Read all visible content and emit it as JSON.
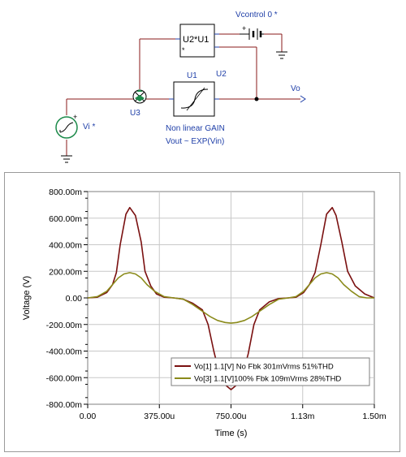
{
  "schematic": {
    "vcontrol_label": "Vcontrol 0 *",
    "multiplier_label": "U2*U1",
    "multiplier_star": "*",
    "gain_u1": "U1",
    "gain_u2": "U2",
    "summer_label": "U3",
    "output_label": "Vo",
    "source_label": "Vi *",
    "plus_sign": "+",
    "gain_note_line1": "Non linear GAIN",
    "gain_note_line2": "Vout ~ EXP(Vin)"
  },
  "chart_data": {
    "type": "line",
    "xlabel": "Time (s)",
    "ylabel": "Voltage (V)",
    "xlim": [
      0,
      0.0015
    ],
    "ylim": [
      -0.8,
      0.8
    ],
    "x_ticks": [
      "0.00",
      "375.00u",
      "750.00u",
      "1.13m",
      "1.50m"
    ],
    "y_ticks": [
      "800.00m",
      "600.00m",
      "400.00m",
      "200.00m",
      "0.00",
      "-200.00m",
      "-400.00m",
      "-600.00m",
      "-800.00m"
    ],
    "grid": true,
    "legend_position": "bottom-right",
    "series": [
      {
        "name": "Vo[1]  1.1[V] No Fbk 301mVrms 51%THD",
        "color": "#7a1010",
        "x": [
          0,
          5e-05,
          0.0001,
          0.00013,
          0.00015,
          0.00017,
          0.0002,
          0.00022,
          0.00025,
          0.00028,
          0.0003,
          0.00033,
          0.00036,
          0.0004,
          0.00045,
          0.0005,
          0.00055,
          0.0006,
          0.00063,
          0.00066,
          0.0007,
          0.00075,
          0.0008,
          0.00084,
          0.00087,
          0.0009,
          0.00095,
          0.001,
          0.00105,
          0.00109,
          0.00113,
          0.00116,
          0.00119,
          0.00122,
          0.00125,
          0.00128,
          0.0013,
          0.00133,
          0.00136,
          0.0014,
          0.00145,
          0.0015
        ],
        "y": [
          0.0,
          0.005,
          0.04,
          0.1,
          0.19,
          0.4,
          0.63,
          0.68,
          0.62,
          0.42,
          0.2,
          0.09,
          0.03,
          0.005,
          0.0,
          -0.01,
          -0.04,
          -0.09,
          -0.2,
          -0.4,
          -0.63,
          -0.69,
          -0.63,
          -0.42,
          -0.2,
          -0.09,
          -0.03,
          -0.005,
          0.0,
          0.005,
          0.04,
          0.1,
          0.19,
          0.4,
          0.63,
          0.68,
          0.62,
          0.42,
          0.2,
          0.09,
          0.03,
          0.0
        ]
      },
      {
        "name": "Vo[3]  1.1[V]100% Fbk 109mVrms 28%THD",
        "color": "#8a8a1a",
        "x": [
          0,
          5e-05,
          0.0001,
          0.00013,
          0.00016,
          0.00019,
          0.00022,
          0.00025,
          0.00028,
          0.00031,
          0.00035,
          0.0004,
          0.00045,
          0.0005,
          0.00055,
          0.0006,
          0.00064,
          0.00068,
          0.00072,
          0.00075,
          0.00078,
          0.00082,
          0.00086,
          0.0009,
          0.00095,
          0.001,
          0.00105,
          0.00109,
          0.00113,
          0.00116,
          0.00119,
          0.00122,
          0.00125,
          0.00128,
          0.00131,
          0.00134,
          0.00138,
          0.00142,
          0.00146,
          0.0015
        ],
        "y": [
          0.0,
          0.01,
          0.05,
          0.1,
          0.15,
          0.18,
          0.19,
          0.18,
          0.15,
          0.1,
          0.05,
          0.01,
          0.0,
          -0.01,
          -0.05,
          -0.1,
          -0.14,
          -0.17,
          -0.185,
          -0.19,
          -0.185,
          -0.17,
          -0.14,
          -0.1,
          -0.05,
          -0.01,
          0.0,
          0.01,
          0.05,
          0.1,
          0.15,
          0.18,
          0.19,
          0.18,
          0.15,
          0.1,
          0.05,
          0.01,
          0.0,
          0.0
        ]
      }
    ]
  }
}
